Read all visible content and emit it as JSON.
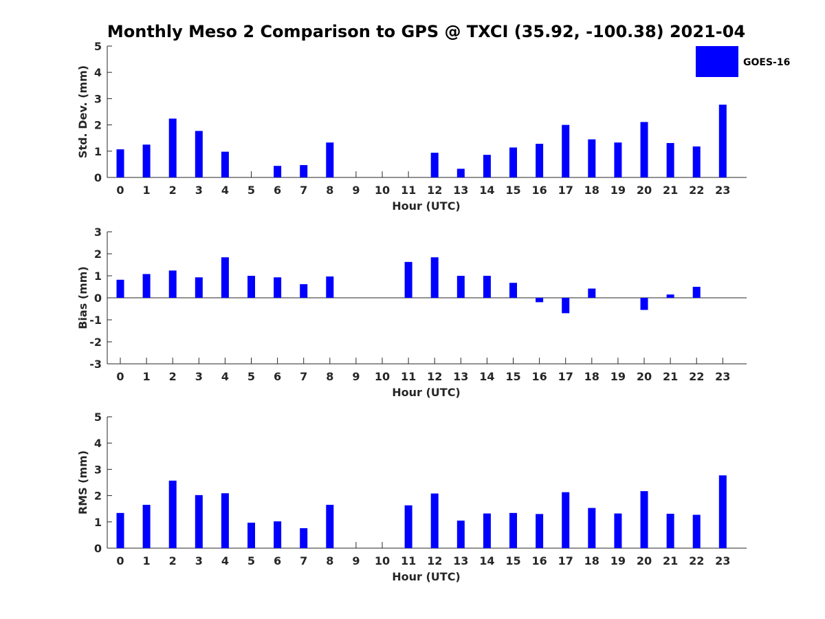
{
  "chart_data": {
    "title": "Monthly Meso 2 Comparison to GPS @ TXCI (35.92, -100.38) 2021-04",
    "series_color": "#0000ff",
    "legend": {
      "label": "GOES-16",
      "placement": "top-right"
    },
    "panels": [
      {
        "type": "bar",
        "id": "std",
        "ylabel": "Std. Dev. (mm)",
        "xlabel": "Hour (UTC)",
        "ylim": [
          0,
          5
        ],
        "yticks": [
          0,
          1,
          2,
          3,
          4,
          5
        ],
        "categories": [
          "0",
          "1",
          "2",
          "3",
          "4",
          "5",
          "6",
          "7",
          "8",
          "9",
          "10",
          "11",
          "12",
          "13",
          "14",
          "15",
          "16",
          "17",
          "18",
          "19",
          "20",
          "21",
          "22",
          "23"
        ],
        "series": [
          {
            "name": "GOES-16",
            "values": [
              1.07,
              1.25,
              2.24,
              1.77,
              0.98,
              0,
              0.44,
              0.47,
              1.33,
              0,
              0,
              0,
              0.94,
              0.33,
              0.86,
              1.14,
              1.28,
              2.0,
              1.45,
              1.33,
              2.11,
              1.31,
              1.18,
              2.77
            ]
          }
        ]
      },
      {
        "type": "bar",
        "id": "bias",
        "ylabel": "Bias (mm)",
        "xlabel": "Hour (UTC)",
        "ylim": [
          -3,
          3
        ],
        "yticks": [
          -3,
          -2,
          -1,
          0,
          1,
          2,
          3
        ],
        "zero_line": true,
        "categories": [
          "0",
          "1",
          "2",
          "3",
          "4",
          "5",
          "6",
          "7",
          "8",
          "9",
          "10",
          "11",
          "12",
          "13",
          "14",
          "15",
          "16",
          "17",
          "18",
          "19",
          "20",
          "21",
          "22",
          "23"
        ],
        "series": [
          {
            "name": "GOES-16",
            "values": [
              0.82,
              1.08,
              1.24,
              0.93,
              1.84,
              1.0,
              0.93,
              0.62,
              0.97,
              0,
              0,
              1.63,
              1.84,
              1.0,
              1.0,
              0.68,
              -0.2,
              -0.7,
              0.42,
              0,
              -0.55,
              0.15,
              0.5,
              0
            ]
          }
        ]
      },
      {
        "type": "bar",
        "id": "rms",
        "ylabel": "RMS (mm)",
        "xlabel": "Hour (UTC)",
        "ylim": [
          0,
          5
        ],
        "yticks": [
          0,
          1,
          2,
          3,
          4,
          5
        ],
        "categories": [
          "0",
          "1",
          "2",
          "3",
          "4",
          "5",
          "6",
          "7",
          "8",
          "9",
          "10",
          "11",
          "12",
          "13",
          "14",
          "15",
          "16",
          "17",
          "18",
          "19",
          "20",
          "21",
          "22",
          "23"
        ],
        "series": [
          {
            "name": "GOES-16",
            "values": [
              1.34,
              1.65,
              2.57,
              2.02,
              2.09,
              0.97,
              1.02,
              0.76,
              1.65,
              0,
              0,
              1.63,
              2.08,
              1.05,
              1.32,
              1.34,
              1.3,
              2.13,
              1.53,
              1.32,
              2.17,
              1.31,
              1.27,
              2.77
            ]
          }
        ]
      }
    ]
  }
}
